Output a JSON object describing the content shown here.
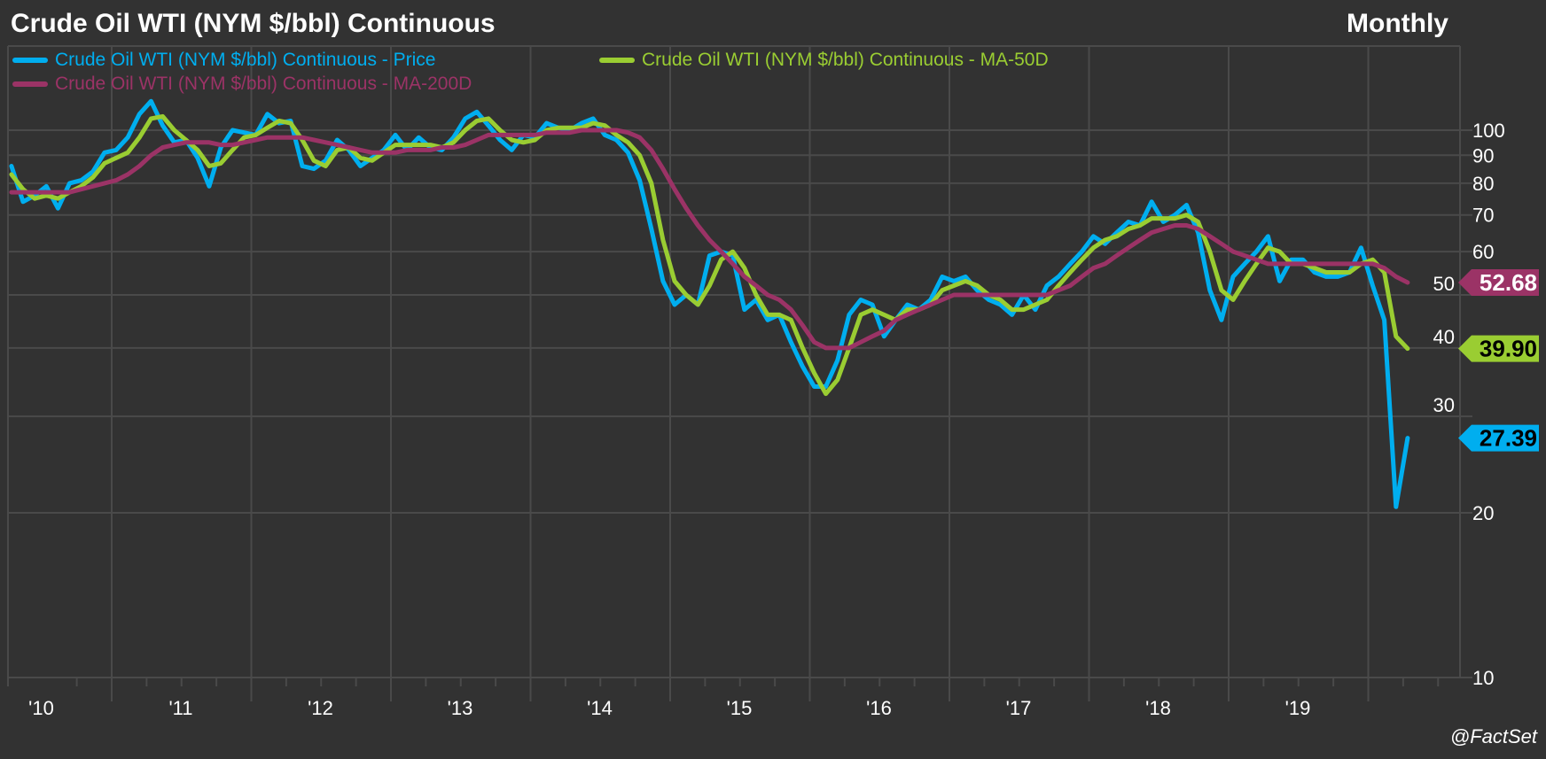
{
  "header": {
    "title": "Crude Oil WTI (NYM $/bbl) Continuous",
    "frequency": "Monthly"
  },
  "legend": [
    {
      "label": "Crude Oil WTI (NYM $/bbl) Continuous - Price",
      "color": "#00aeef"
    },
    {
      "label": "Crude Oil WTI (NYM $/bbl) Continuous - MA-50D",
      "color": "#9acd32"
    },
    {
      "label": "Crude Oil WTI (NYM $/bbl) Continuous - MA-200D",
      "color": "#9b3366"
    }
  ],
  "credit": "@FactSet",
  "chart_data": {
    "type": "line",
    "title": "Crude Oil WTI (NYM $/bbl) Continuous",
    "frequency": "Monthly",
    "x_start": "2010-04",
    "x_step": "1 month",
    "x_tick_labels": [
      "'10",
      "'11",
      "'12",
      "'13",
      "'14",
      "'15",
      "'16",
      "'17",
      "'18",
      "'19"
    ],
    "y_scale": "log",
    "ylim": [
      10,
      150
    ],
    "y_tick_labels": [
      "10",
      "20",
      "30",
      "40",
      "50",
      "60",
      "70",
      "80",
      "90",
      "100"
    ],
    "y_ticks": [
      10,
      20,
      30,
      40,
      50,
      60,
      70,
      80,
      90,
      100
    ],
    "grid": true,
    "legend_position": "top-left",
    "series": [
      {
        "name": "Crude Oil WTI (NYM $/bbl) Continuous - Price",
        "color": "#00aeef",
        "last_label": "27.39",
        "label_text_color": "#000000",
        "values": [
          86,
          74,
          76,
          79,
          72,
          80,
          81,
          84,
          91,
          92,
          97,
          107,
          113,
          102,
          95,
          96,
          89,
          79,
          93,
          100,
          99,
          98,
          107,
          103,
          104,
          86,
          85,
          88,
          96,
          92,
          86,
          89,
          92,
          98,
          92,
          97,
          93,
          92,
          97,
          105,
          108,
          102,
          96,
          92,
          98,
          97,
          103,
          101,
          100,
          103,
          105,
          98,
          96,
          91,
          81,
          66,
          53,
          48,
          50,
          48,
          59,
          60,
          59,
          47,
          49,
          45,
          46,
          41,
          37,
          34,
          34,
          38,
          46,
          49,
          48,
          42,
          45,
          48,
          47,
          49,
          54,
          53,
          54,
          51,
          49,
          48,
          46,
          50,
          47,
          52,
          54,
          57,
          60,
          64,
          62,
          65,
          68,
          67,
          74,
          68,
          70,
          73,
          65,
          51,
          45,
          54,
          57,
          60,
          64,
          53,
          58,
          58,
          55,
          54,
          54,
          55,
          61,
          52,
          45,
          20.5,
          27.39
        ]
      },
      {
        "name": "Crude Oil WTI (NYM $/bbl) Continuous - MA-50D",
        "color": "#9acd32",
        "last_label": "39.90",
        "label_text_color": "#000000",
        "values": [
          83,
          78,
          75,
          76,
          75,
          77,
          79,
          82,
          87,
          89,
          91,
          97,
          105,
          106,
          100,
          96,
          92,
          86,
          87,
          92,
          97,
          98,
          101,
          104,
          103,
          96,
          88,
          86,
          92,
          93,
          89,
          88,
          91,
          94,
          94,
          94,
          94,
          93,
          95,
          100,
          104,
          105,
          100,
          96,
          95,
          96,
          100,
          101,
          101,
          101,
          103,
          102,
          98,
          95,
          90,
          80,
          63,
          53,
          50,
          48,
          52,
          58,
          60,
          56,
          50,
          46,
          46,
          45,
          40,
          36,
          33,
          35,
          40,
          46,
          47,
          46,
          45,
          47,
          47,
          48,
          51,
          52,
          53,
          52,
          50,
          49,
          47,
          47,
          48,
          49,
          52,
          55,
          58,
          61,
          63,
          64,
          66,
          67,
          69,
          69,
          69,
          70,
          68,
          60,
          51,
          49,
          53,
          57,
          61,
          60,
          57,
          57,
          56,
          55,
          55,
          55,
          57,
          58,
          55,
          42,
          39.9
        ]
      },
      {
        "name": "Crude Oil WTI (NYM $/bbl) Continuous - MA-200D",
        "color": "#9b3366",
        "last_label": "52.68",
        "label_text_color": "#ffffff",
        "values": [
          77,
          77,
          77,
          77,
          77,
          77,
          78,
          79,
          80,
          81,
          83,
          86,
          90,
          93,
          94,
          95,
          95,
          95,
          94,
          94,
          95,
          96,
          97,
          97,
          97,
          97,
          96,
          95,
          94,
          93,
          92,
          91,
          91,
          91,
          92,
          92,
          92,
          93,
          93,
          94,
          96,
          98,
          98,
          98,
          98,
          98,
          99,
          99,
          99,
          100,
          100,
          100,
          100,
          99,
          97,
          92,
          85,
          78,
          72,
          67,
          63,
          60,
          57,
          54,
          52,
          50,
          49,
          47,
          44,
          41,
          40,
          40,
          40,
          41,
          42,
          43,
          45,
          46,
          47,
          48,
          49,
          50,
          50,
          50,
          50,
          50,
          50,
          50,
          50,
          50,
          51,
          52,
          54,
          56,
          57,
          59,
          61,
          63,
          65,
          66,
          67,
          67,
          66,
          64,
          62,
          60,
          59,
          58,
          57,
          57,
          57,
          57,
          57,
          57,
          57,
          57,
          57,
          57,
          56,
          54,
          52.68
        ]
      }
    ]
  }
}
